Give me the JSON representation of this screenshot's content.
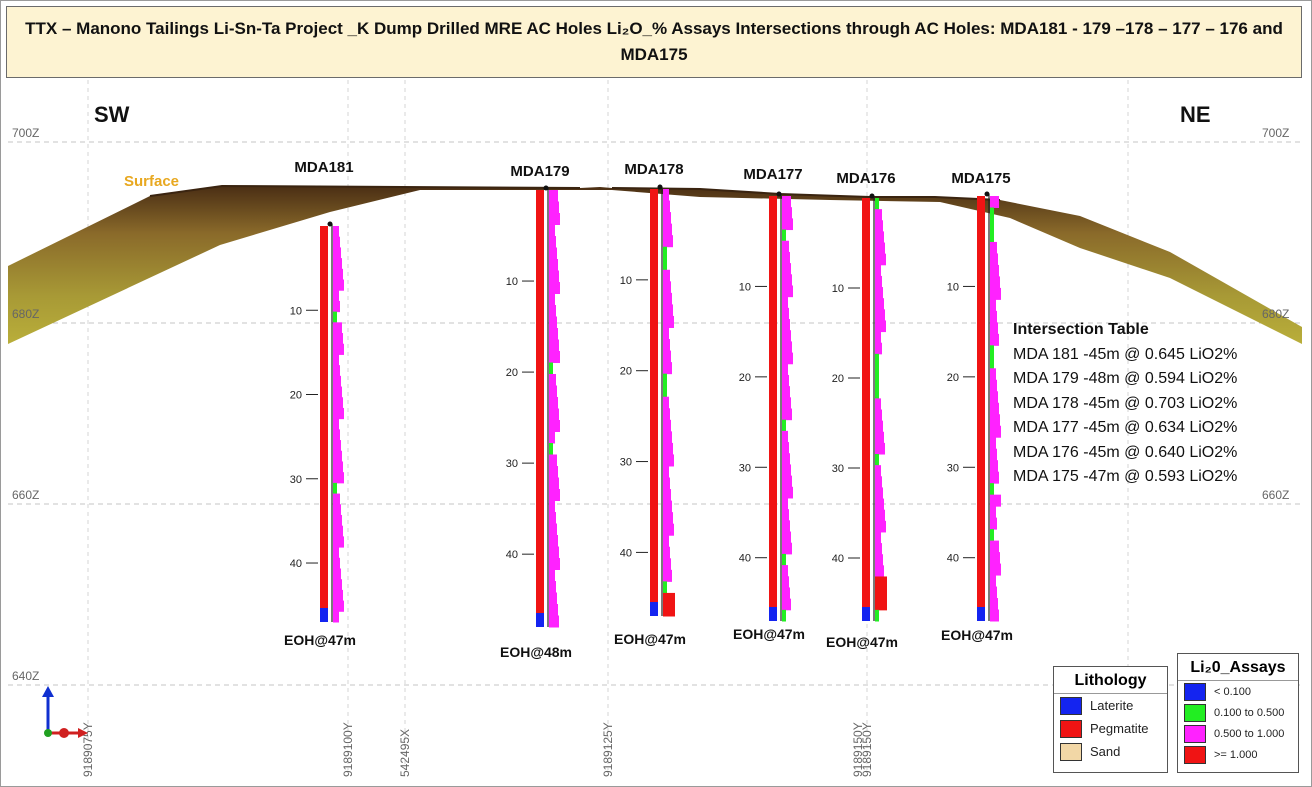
{
  "title": "TTX – Manono Tailings Li-Sn-Ta Project _K Dump Drilled MRE AC Holes Li₂O_% Assays Intersections through AC Holes: MDA181 - 179 –178 – 177 – 176 and MDA175",
  "directions": {
    "left": "SW",
    "right": "NE"
  },
  "surface_label": "Surface",
  "elevation_labels": [
    "700Z",
    "680Z",
    "660Z",
    "640Z"
  ],
  "northing_labels": [
    "9189075Y",
    "9189100Y",
    "542495X",
    "9189125Y",
    "9189150Y"
  ],
  "depth_ticks": [
    "10",
    "20",
    "30",
    "40"
  ],
  "holes": [
    {
      "name": "MDA181",
      "eoh": "EOH@47m",
      "depth_m": 47
    },
    {
      "name": "MDA179",
      "eoh": "EOH@48m",
      "depth_m": 48
    },
    {
      "name": "MDA178",
      "eoh": "EOH@47m",
      "depth_m": 47
    },
    {
      "name": "MDA177",
      "eoh": "EOH@47m",
      "depth_m": 47
    },
    {
      "name": "MDA176",
      "eoh": "EOH@47m",
      "depth_m": 47
    },
    {
      "name": "MDA175",
      "eoh": "EOH@47m",
      "depth_m": 47
    }
  ],
  "intersection_table": {
    "title": "Intersection Table",
    "rows": [
      "MDA 181 -45m @ 0.645 LiO2%",
      "MDA 179 -48m @ 0.594 LiO2%",
      "MDA 178 -45m @ 0.703 LiO2%",
      "MDA 177 -45m @ 0.634 LiO2%",
      "MDA 176 -45m @ 0.640 LiO2%",
      "MDA 175 -47m @ 0.593 LiO2%"
    ]
  },
  "lithology_legend": {
    "title": "Lithology",
    "items": [
      {
        "label": "Laterite",
        "color": "#1424f0"
      },
      {
        "label": "Pegmatite",
        "color": "#f01414"
      },
      {
        "label": "Sand",
        "color": "#f2d7a6"
      }
    ]
  },
  "assay_legend": {
    "title": "Li₂0_Assays",
    "items": [
      {
        "label": "< 0.100",
        "color": "#1424f0"
      },
      {
        "label": "0.100 to 0.500",
        "color": "#22ee22"
      },
      {
        "label": "0.500 to 1.000",
        "color": "#ff22ff"
      },
      {
        "label": ">= 1.000",
        "color": "#f01414"
      }
    ]
  }
}
